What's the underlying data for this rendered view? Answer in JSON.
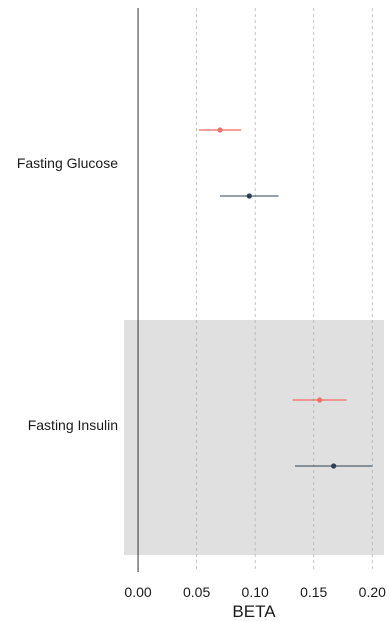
{
  "chart_data": {
    "type": "forest",
    "xlabel": "BETA",
    "xlim": [
      -0.012,
      0.21
    ],
    "ticks": [
      0.0,
      0.05,
      0.1,
      0.15,
      0.2
    ],
    "tick_labels": [
      "0.00",
      "0.05",
      "0.10",
      "0.15",
      "0.20"
    ],
    "grid": "vertical dashed",
    "reference_line": 0,
    "groups": [
      {
        "label": "Fasting Glucose",
        "shaded": false,
        "estimates": [
          {
            "beta": 0.07,
            "lower": 0.052,
            "upper": 0.088,
            "color": "#f4736b"
          },
          {
            "beta": 0.095,
            "lower": 0.07,
            "upper": 0.12,
            "color": "#2c3e50"
          }
        ]
      },
      {
        "label": "Fasting Insulin",
        "shaded": true,
        "estimates": [
          {
            "beta": 0.155,
            "lower": 0.132,
            "upper": 0.178,
            "color": "#f4736b"
          },
          {
            "beta": 0.167,
            "lower": 0.134,
            "upper": 0.2,
            "color": "#2c3e50"
          }
        ]
      }
    ]
  }
}
